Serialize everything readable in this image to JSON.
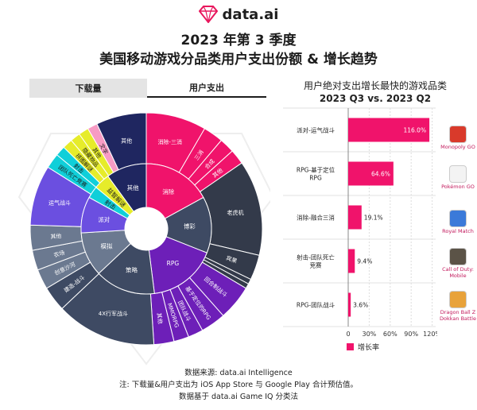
{
  "header": {
    "logo_text": "data.ai",
    "title_line1": "2023 年第 3 季度",
    "title_line2": "美国移动游戏分品类用户支出份额 & 增长趋势"
  },
  "tabs": [
    {
      "label": "下载量",
      "active": false
    },
    {
      "label": "用户支出",
      "active": true
    }
  ],
  "colors": {
    "pink": "#f0136b",
    "dark_blue": "#1f2660",
    "slate": "#3e4a63",
    "purple": "#6d1fb8",
    "violet": "#6b4fe0",
    "grey_blue": "#6b7990",
    "cyan": "#10cfd9",
    "yellow": "#e6ec2a",
    "light_pink": "#f79bc4",
    "dark_grey": "#333a4a"
  },
  "chart_data": [
    {
      "type": "sunburst",
      "inner_ring": [
        {
          "label": "消除",
          "value": 17,
          "color": "#f0136b"
        },
        {
          "label": "博彩",
          "value": 14,
          "color": "#3e4a63"
        },
        {
          "label": "RPG",
          "value": 17,
          "color": "#6d1fb8"
        },
        {
          "label": "策略",
          "value": 15,
          "color": "#3e4a63"
        },
        {
          "label": "模拟",
          "value": 11,
          "color": "#6b7990"
        },
        {
          "label": "派对",
          "value": 9,
          "color": "#6b4fe0"
        },
        {
          "label": "射击",
          "value": 3,
          "color": "#10cfd9"
        },
        {
          "label": "益智解谜",
          "value": 4,
          "color": "#e6ec2a"
        },
        {
          "label": "其他",
          "value": 10,
          "color": "#1f2660"
        }
      ],
      "outer_ring": [
        {
          "label": "消除-三消",
          "value": 12,
          "color": "#f0136b"
        },
        {
          "label": "三消",
          "value": 4,
          "color": "#f0136b"
        },
        {
          "label": "合成",
          "value": 3,
          "color": "#f0136b"
        },
        {
          "label": "其他",
          "value": 3,
          "color": "#f0136b"
        },
        {
          "label": "老虎机",
          "value": 19,
          "color": "#333a4a"
        },
        {
          "label": "宾果",
          "value": 5,
          "color": "#333a4a"
        },
        {
          "label": "",
          "value": 1,
          "color": "#333a4a"
        },
        {
          "label": "",
          "value": 1,
          "color": "#333a4a"
        },
        {
          "label": "回合制战斗",
          "value": 7,
          "color": "#6d1fb8"
        },
        {
          "label": "基于定位的RPG",
          "value": 5,
          "color": "#6d1fb8"
        },
        {
          "label": "团队战斗",
          "value": 3,
          "color": "#6d1fb8"
        },
        {
          "label": "MMORPG",
          "value": 3,
          "color": "#6d1fb8"
        },
        {
          "label": "其他",
          "value": 4,
          "color": "#6d1fb8"
        },
        {
          "label": "4X行军战斗",
          "value": 20,
          "color": "#3e4a63"
        },
        {
          "label": "建造-战斗",
          "value": 5,
          "color": "#3e4a63"
        },
        {
          "label": "创意沙河",
          "value": 4,
          "color": "#6b7990"
        },
        {
          "label": "农场",
          "value": 4,
          "color": "#6b7990"
        },
        {
          "label": "其他",
          "value": 5,
          "color": "#6b7990"
        },
        {
          "label": "运气战斗",
          "value": 12,
          "color": "#6b4fe0"
        },
        {
          "label": "团队死亡竞赛",
          "value": 3,
          "color": "#10cfd9"
        },
        {
          "label": "射击",
          "value": 2,
          "color": "#10cfd9"
        },
        {
          "label": "拼图解谜",
          "value": 2,
          "color": "#e6ec2a"
        },
        {
          "label": "隐藏物品",
          "value": 2,
          "color": "#e6ec2a"
        },
        {
          "label": "其他",
          "value": 2,
          "color": "#e6ec2a"
        },
        {
          "label": "文字",
          "value": 2,
          "color": "#f79bc4"
        },
        {
          "label": "其他",
          "value": 10,
          "color": "#1f2660"
        }
      ],
      "extra_labels": [
        "基于兼容性",
        "其他",
        "其他"
      ]
    },
    {
      "type": "bar",
      "orientation": "horizontal",
      "title": "用户绝对支出增长最快的游戏品类",
      "subtitle": "2023 Q3 vs. 2023 Q2",
      "categories": [
        "派对-运气战斗",
        "RPG-基于定位RPG",
        "消除-融合三消",
        "射击-团队死亡竞赛",
        "RPG-团队战斗"
      ],
      "category_lines": [
        [
          "派对-运气战斗"
        ],
        [
          "RPG-基于定位",
          "RPG"
        ],
        [
          "消除-融合三消"
        ],
        [
          "射击-团队死亡",
          "竞赛"
        ],
        [
          "RPG-团队战斗"
        ]
      ],
      "series": [
        {
          "name": "增长率",
          "values": [
            116.0,
            64.6,
            19.1,
            9.4,
            3.6
          ]
        }
      ],
      "value_labels": [
        "116.0%",
        "64.6%",
        "19.1%",
        "9.4%",
        "3.6%"
      ],
      "x_ticks": [
        "0",
        "30%",
        "60%",
        "90%",
        "120%"
      ],
      "x_tick_values": [
        0,
        30,
        60,
        90,
        120
      ],
      "xlim": [
        0,
        125
      ],
      "legend": "bottom",
      "top_games": [
        "Monopoly GO",
        "Pokémon GO",
        "Royal Match",
        "Call of Duty: Mobile",
        "Dragon Ball Z Dokkan Battle"
      ]
    }
  ],
  "footer": {
    "line1": "数据来源: data.ai Intelligence",
    "line2": "注: 下载量&用户支出为 iOS App Store 与 Google Play 合计预估值。",
    "line3": "数据基于 data.ai Game IQ 分类法"
  }
}
